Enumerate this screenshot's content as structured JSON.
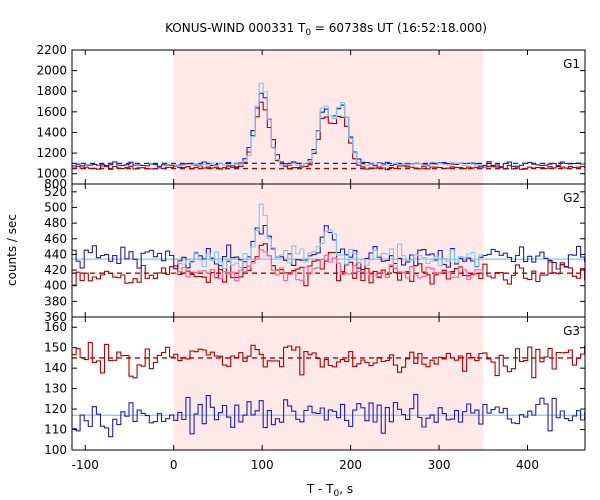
{
  "chart_data": {
    "type": "line",
    "title_prefix": "KONUS-WIND 000331 T",
    "title_sub": "0",
    "title_suffix": " = 60738s UT (16:52:18.000)",
    "xlabel_prefix": "T - T",
    "xlabel_sub": "0",
    "xlabel_suffix": ", s",
    "ylabel": "counts / sec",
    "xlim": [
      -115,
      465
    ],
    "x_ticks": [
      -100,
      0,
      100,
      200,
      300,
      400
    ],
    "x_tick_labels": [
      "-100",
      "0",
      "100",
      "200",
      "300",
      "400"
    ],
    "shaded_interval": [
      0,
      350
    ],
    "colors": {
      "shade": "#ffe8e8",
      "dark_red": "#b00000",
      "dark_blue": "#2020b0",
      "light_blue": "#80c8f0",
      "pink": "#ff60a0"
    },
    "panels": [
      {
        "label": "G1",
        "ylim": [
          900,
          2200
        ],
        "y_ticks": [
          1000,
          1200,
          1400,
          1600,
          1800,
          2000,
          2200
        ],
        "y_tick_labels": [
          "1000",
          "1200",
          "1400",
          "1600",
          "1800",
          "2000",
          "2200"
        ],
        "bottom_tick_label": "800",
        "background_levels": {
          "red": 1050,
          "blue": 1100
        },
        "series": [
          {
            "color": "dark_blue",
            "base": 1090,
            "noise": 15,
            "peaks": [
              [
                100,
                12,
                700
              ],
              [
                170,
                10,
                520
              ],
              [
                190,
                12,
                560
              ]
            ],
            "seed": 11
          },
          {
            "color": "dark_red",
            "base": 1060,
            "noise": 13,
            "peaks": [
              [
                100,
                12,
                620
              ],
              [
                170,
                10,
                450
              ],
              [
                190,
                12,
                500
              ]
            ],
            "seed": 23
          },
          {
            "color": "light_blue",
            "base": 1090,
            "noise": 10,
            "peaks": [
              [
                100,
                10,
                800
              ],
              [
                170,
                9,
                560
              ],
              [
                190,
                11,
                600
              ]
            ],
            "seed": 37,
            "start": 0,
            "end": 350
          }
        ]
      },
      {
        "label": "G2",
        "ylim": [
          360,
          530
        ],
        "y_ticks": [
          360,
          380,
          400,
          420,
          440,
          460,
          480,
          500,
          520
        ],
        "y_tick_labels": [
          "360",
          "380",
          "400",
          "420",
          "440",
          "460",
          "480",
          "500",
          "520"
        ],
        "bottom_tick_label": "",
        "background_levels": {
          "red": 416,
          "blue": 434
        },
        "series": [
          {
            "color": "dark_blue",
            "base": 436,
            "noise": 9,
            "peaks": [
              [
                100,
                10,
                45
              ],
              [
                175,
                12,
                35
              ]
            ],
            "seed": 41
          },
          {
            "color": "dark_red",
            "base": 416,
            "noise": 9,
            "peaks": [
              [
                100,
                10,
                35
              ],
              [
                170,
                12,
                22
              ]
            ],
            "seed": 53
          },
          {
            "color": "light_blue",
            "base": 436,
            "noise": 8,
            "peaks": [
              [
                100,
                8,
                70
              ],
              [
                175,
                12,
                30
              ]
            ],
            "seed": 67,
            "start": 0,
            "end": 350
          },
          {
            "color": "pink",
            "base": 416,
            "noise": 6,
            "peaks": [
              [
                100,
                10,
                35
              ],
              [
                175,
                12,
                20
              ]
            ],
            "seed": 71,
            "start": 0,
            "end": 350
          }
        ]
      },
      {
        "label": "G3",
        "ylim": [
          100,
          165
        ],
        "y_ticks": [
          100,
          110,
          120,
          130,
          140,
          150,
          160
        ],
        "y_tick_labels": [
          "100",
          "110",
          "120",
          "130",
          "140",
          "150",
          "160"
        ],
        "bottom_tick_label": "",
        "background_levels": {
          "red": 145,
          "blue": 117
        },
        "series": [
          {
            "color": "dark_red",
            "base": 145,
            "noise": 4.5,
            "peaks": [],
            "seed": 83
          },
          {
            "color": "dark_blue",
            "base": 117,
            "noise": 4.5,
            "peaks": [],
            "seed": 97
          }
        ]
      }
    ]
  }
}
